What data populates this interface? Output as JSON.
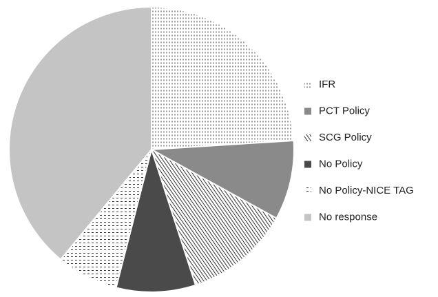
{
  "chart_data": {
    "type": "pie",
    "categories": [
      "IFR",
      "PCT Policy",
      "SCG Policy",
      "No Policy",
      "No Policy-NICE TAG",
      "No response"
    ],
    "values": [
      24,
      9,
      12,
      9,
      7,
      39
    ],
    "colors": [
      "#ffffff",
      "#8a8a8a",
      "#ffffff",
      "#4a4a4a",
      "#ffffff",
      "#c4c4c4"
    ],
    "patterns": [
      "dots",
      null,
      "stripes",
      null,
      "dashes",
      null
    ],
    "legend": "right"
  }
}
